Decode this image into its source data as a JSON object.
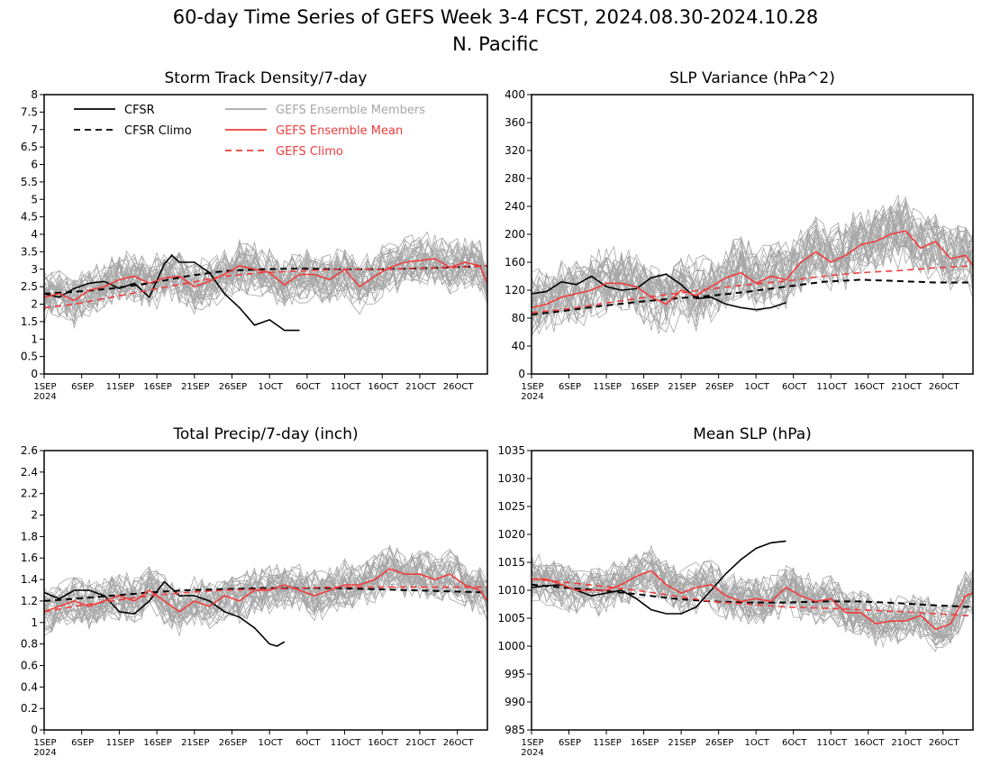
{
  "page": {
    "title_line1": "60-day Time Series of GEFS Week 3-4 FCST, 2024.08.30-2024.10.28",
    "title_line2": "N. Pacific"
  },
  "colors": {
    "cfsr": "#000000",
    "gefs_members": "#a6a6a6",
    "gefs_mean": "#f03c3c"
  },
  "legend": {
    "items": [
      {
        "label": "CFSR",
        "style": "solid",
        "color": "#000000"
      },
      {
        "label": "CFSR Climo",
        "style": "dashed",
        "color": "#000000"
      },
      {
        "label": "GEFS Ensemble Members",
        "style": "solid",
        "color": "#a6a6a6"
      },
      {
        "label": "GEFS Ensemble Mean",
        "style": "solid",
        "color": "#f03c3c"
      },
      {
        "label": "GEFS Climo",
        "style": "dashed",
        "color": "#f03c3c"
      }
    ]
  },
  "chart_data": [
    {
      "type": "line",
      "title": "Storm Track Density/7-day",
      "xlim": [
        1,
        60
      ],
      "ylim": [
        0,
        8
      ],
      "yticks": [
        0,
        0.5,
        1,
        1.5,
        2,
        2.5,
        3,
        3.5,
        4,
        4.5,
        5,
        5.5,
        6,
        6.5,
        7,
        7.5,
        8
      ],
      "ytick_labels": [
        "0",
        "0.5",
        "1",
        "1.5",
        "2",
        "2.5",
        "3",
        "3.5",
        "4",
        "4.5",
        "5",
        "5.5",
        "6",
        "6.5",
        "7",
        "7.5",
        "8"
      ],
      "xtick_labels": [
        "1SEP",
        "6SEP",
        "11SEP",
        "16SEP",
        "21SEP",
        "26SEP",
        "1OCT",
        "6OCT",
        "11OCT",
        "16OCT",
        "21OCT",
        "26OCT"
      ],
      "xtick_sublabel": "2024",
      "legend": "top-left",
      "series": [
        {
          "name": "CFSR",
          "x": [
            1,
            3,
            5,
            7,
            9,
            11,
            13,
            15,
            17,
            18,
            19,
            21,
            23,
            25,
            27,
            29,
            31,
            33,
            35
          ],
          "y": [
            2.3,
            2.2,
            2.45,
            2.6,
            2.65,
            2.45,
            2.6,
            2.2,
            3.15,
            3.4,
            3.2,
            3.2,
            2.9,
            2.3,
            1.9,
            1.4,
            1.55,
            1.25,
            1.25
          ]
        },
        {
          "name": "CFSR Climo",
          "x": [
            1,
            5,
            10,
            15,
            20,
            25,
            30,
            35,
            40,
            45,
            50,
            55,
            60
          ],
          "y": [
            2.3,
            2.35,
            2.45,
            2.6,
            2.8,
            2.95,
            3.0,
            3.02,
            3.0,
            3.0,
            3.02,
            3.05,
            3.1
          ]
        },
        {
          "name": "GEFS Ensemble Mean",
          "x": [
            1,
            3,
            5,
            7,
            9,
            11,
            13,
            15,
            17,
            19,
            21,
            23,
            25,
            27,
            29,
            31,
            33,
            35,
            37,
            39,
            41,
            43,
            45,
            47,
            49,
            51,
            53,
            55,
            57,
            59,
            60
          ],
          "y": [
            2.2,
            2.3,
            2.1,
            2.4,
            2.5,
            2.7,
            2.8,
            2.6,
            2.75,
            2.8,
            2.5,
            2.65,
            2.85,
            3.1,
            3.0,
            2.9,
            2.55,
            2.85,
            2.85,
            2.7,
            3.0,
            2.5,
            2.8,
            3.05,
            3.2,
            3.25,
            3.3,
            3.05,
            3.2,
            3.1,
            2.6
          ]
        },
        {
          "name": "GEFS Climo",
          "x": [
            1,
            5,
            10,
            15,
            20,
            25,
            30,
            35,
            40,
            45,
            50,
            55,
            60
          ],
          "y": [
            1.9,
            2.0,
            2.2,
            2.4,
            2.6,
            2.8,
            2.9,
            2.95,
            3.0,
            3.0,
            3.02,
            3.05,
            3.1
          ]
        }
      ],
      "members": {
        "count": 30,
        "mean_source": "GEFS Ensemble Mean",
        "spread": 0.6
      }
    },
    {
      "type": "line",
      "title": "SLP Variance (hPa^2)",
      "xlim": [
        1,
        60
      ],
      "ylim": [
        0,
        400
      ],
      "yticks": [
        0,
        40,
        80,
        120,
        160,
        200,
        240,
        280,
        320,
        360,
        400
      ],
      "ytick_labels": [
        "0",
        "40",
        "80",
        "120",
        "160",
        "200",
        "240",
        "280",
        "320",
        "360",
        "400"
      ],
      "xtick_labels": [
        "1SEP",
        "6SEP",
        "11SEP",
        "16SEP",
        "21SEP",
        "26SEP",
        "1OCT",
        "6OCT",
        "11OCT",
        "16OCT",
        "21OCT",
        "26OCT"
      ],
      "xtick_sublabel": "2024",
      "series": [
        {
          "name": "CFSR",
          "x": [
            1,
            3,
            5,
            7,
            9,
            11,
            13,
            15,
            17,
            19,
            21,
            23,
            25,
            27,
            29,
            31,
            33,
            35
          ],
          "y": [
            115,
            118,
            132,
            128,
            140,
            125,
            120,
            122,
            138,
            143,
            128,
            108,
            110,
            100,
            95,
            92,
            95,
            102
          ]
        },
        {
          "name": "CFSR Climo",
          "x": [
            1,
            5,
            10,
            15,
            20,
            25,
            30,
            35,
            40,
            45,
            50,
            55,
            60
          ],
          "y": [
            85,
            90,
            97,
            103,
            108,
            112,
            118,
            125,
            132,
            135,
            133,
            131,
            131
          ]
        },
        {
          "name": "GEFS Ensemble Mean",
          "x": [
            1,
            3,
            5,
            7,
            9,
            11,
            13,
            15,
            17,
            19,
            21,
            23,
            25,
            27,
            29,
            31,
            33,
            35,
            37,
            39,
            41,
            43,
            45,
            47,
            49,
            51,
            53,
            55,
            57,
            59,
            60
          ],
          "y": [
            95,
            100,
            110,
            115,
            120,
            130,
            130,
            125,
            110,
            100,
            120,
            112,
            125,
            138,
            145,
            130,
            140,
            135,
            160,
            175,
            160,
            170,
            185,
            190,
            200,
            205,
            180,
            190,
            165,
            170,
            155
          ]
        },
        {
          "name": "GEFS Climo",
          "x": [
            1,
            5,
            10,
            15,
            20,
            25,
            30,
            35,
            40,
            45,
            50,
            55,
            60
          ],
          "y": [
            88,
            92,
            100,
            108,
            115,
            122,
            128,
            133,
            140,
            145,
            148,
            152,
            155
          ]
        }
      ],
      "members": {
        "count": 30,
        "mean_source": "GEFS Ensemble Mean",
        "spread": 40
      }
    },
    {
      "type": "line",
      "title": "Total Precip/7-day (inch)",
      "xlim": [
        1,
        60
      ],
      "ylim": [
        0,
        2.6
      ],
      "yticks": [
        0,
        0.2,
        0.4,
        0.6,
        0.8,
        1,
        1.2,
        1.4,
        1.6,
        1.8,
        2,
        2.2,
        2.4,
        2.6
      ],
      "ytick_labels": [
        "0",
        "0.2",
        "0.4",
        "0.6",
        "0.8",
        "1",
        "1.2",
        "1.4",
        "1.6",
        "1.8",
        "2",
        "2.2",
        "2.4",
        "2.6"
      ],
      "xtick_labels": [
        "1SEP",
        "6SEP",
        "11SEP",
        "16SEP",
        "21SEP",
        "26SEP",
        "1OCT",
        "6OCT",
        "11OCT",
        "16OCT",
        "21OCT",
        "26OCT"
      ],
      "xtick_sublabel": "2024",
      "series": [
        {
          "name": "CFSR",
          "x": [
            1,
            3,
            5,
            7,
            9,
            11,
            13,
            15,
            17,
            19,
            21,
            23,
            25,
            27,
            29,
            31,
            32,
            33
          ],
          "y": [
            1.28,
            1.22,
            1.3,
            1.3,
            1.25,
            1.1,
            1.08,
            1.2,
            1.38,
            1.25,
            1.25,
            1.2,
            1.1,
            1.05,
            0.95,
            0.8,
            0.78,
            0.82
          ]
        },
        {
          "name": "CFSR Climo",
          "x": [
            1,
            5,
            10,
            15,
            20,
            25,
            30,
            35,
            40,
            45,
            50,
            55,
            60
          ],
          "y": [
            1.2,
            1.22,
            1.25,
            1.28,
            1.3,
            1.31,
            1.32,
            1.32,
            1.32,
            1.31,
            1.3,
            1.29,
            1.28
          ]
        },
        {
          "name": "GEFS Ensemble Mean",
          "x": [
            1,
            3,
            5,
            7,
            9,
            11,
            13,
            15,
            17,
            19,
            21,
            23,
            25,
            27,
            29,
            31,
            33,
            35,
            37,
            39,
            41,
            43,
            45,
            47,
            49,
            51,
            53,
            55,
            57,
            59,
            60
          ],
          "y": [
            1.1,
            1.15,
            1.2,
            1.15,
            1.2,
            1.25,
            1.2,
            1.3,
            1.2,
            1.1,
            1.2,
            1.15,
            1.25,
            1.2,
            1.3,
            1.3,
            1.35,
            1.3,
            1.25,
            1.3,
            1.35,
            1.35,
            1.4,
            1.5,
            1.45,
            1.45,
            1.4,
            1.45,
            1.35,
            1.3,
            1.2
          ]
        },
        {
          "name": "GEFS Climo",
          "x": [
            1,
            5,
            10,
            15,
            20,
            25,
            30,
            35,
            40,
            45,
            50,
            55,
            60
          ],
          "y": [
            1.1,
            1.15,
            1.2,
            1.25,
            1.28,
            1.3,
            1.31,
            1.32,
            1.33,
            1.33,
            1.33,
            1.33,
            1.33
          ]
        }
      ],
      "members": {
        "count": 30,
        "mean_source": "GEFS Ensemble Mean",
        "spread": 0.18
      }
    },
    {
      "type": "line",
      "title": "Mean SLP (hPa)",
      "xlim": [
        1,
        60
      ],
      "ylim": [
        985,
        1035
      ],
      "yticks": [
        985,
        990,
        995,
        1000,
        1005,
        1010,
        1015,
        1020,
        1025,
        1030,
        1035
      ],
      "ytick_labels": [
        "985",
        "990",
        "995",
        "1000",
        "1005",
        "1010",
        "1015",
        "1020",
        "1025",
        "1030",
        "1035"
      ],
      "xtick_labels": [
        "1SEP",
        "6SEP",
        "11SEP",
        "16SEP",
        "21SEP",
        "26SEP",
        "1OCT",
        "6OCT",
        "11OCT",
        "16OCT",
        "21OCT",
        "26OCT"
      ],
      "xtick_sublabel": "2024",
      "series": [
        {
          "name": "CFSR",
          "x": [
            1,
            3,
            5,
            7,
            9,
            11,
            13,
            15,
            17,
            19,
            21,
            23,
            25,
            27,
            29,
            31,
            33,
            35
          ],
          "y": [
            1010.5,
            1010.8,
            1011,
            1010,
            1009,
            1009.5,
            1010,
            1008.5,
            1006.5,
            1005.8,
            1005.8,
            1007,
            1010,
            1013,
            1015.5,
            1017.5,
            1018.5,
            1018.8
          ]
        },
        {
          "name": "CFSR Climo",
          "x": [
            1,
            5,
            10,
            15,
            20,
            25,
            30,
            35,
            40,
            45,
            50,
            55,
            60
          ],
          "y": [
            1011,
            1010.5,
            1010,
            1009.3,
            1008.5,
            1008,
            1007.8,
            1007.8,
            1008,
            1008,
            1007.7,
            1007.3,
            1007
          ]
        },
        {
          "name": "GEFS Ensemble Mean",
          "x": [
            1,
            3,
            5,
            7,
            9,
            11,
            13,
            15,
            17,
            19,
            21,
            23,
            25,
            27,
            29,
            31,
            33,
            35,
            37,
            39,
            41,
            43,
            45,
            47,
            49,
            51,
            53,
            55,
            57,
            59,
            60
          ],
          "y": [
            1012,
            1012,
            1011,
            1010,
            1010,
            1010,
            1011,
            1012.5,
            1013.5,
            1011,
            1009.5,
            1010.5,
            1011,
            1009,
            1008,
            1008.5,
            1008,
            1010.5,
            1009,
            1008,
            1008.5,
            1006,
            1006,
            1004,
            1004.5,
            1004.5,
            1005.5,
            1003,
            1004,
            1009,
            1009.5
          ]
        },
        {
          "name": "GEFS Climo",
          "x": [
            1,
            5,
            10,
            15,
            20,
            25,
            30,
            35,
            40,
            45,
            50,
            55,
            60
          ],
          "y": [
            1012,
            1011.5,
            1010.8,
            1010,
            1009,
            1008,
            1007.5,
            1007,
            1006.8,
            1006.5,
            1006.2,
            1005.8,
            1005.4
          ]
        }
      ],
      "members": {
        "count": 30,
        "mean_source": "GEFS Ensemble Mean",
        "spread": 3.5
      }
    }
  ]
}
